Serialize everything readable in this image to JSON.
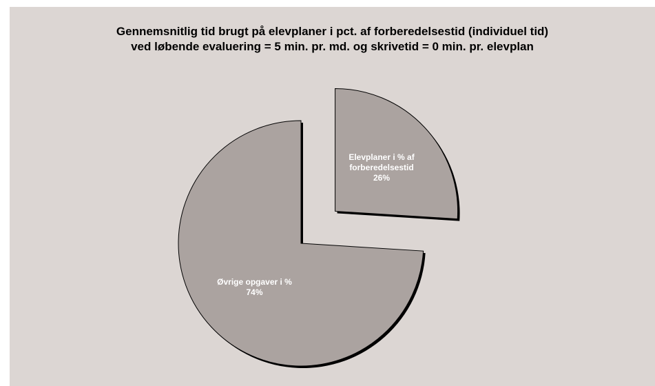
{
  "chart_data": {
    "type": "pie",
    "title_lines": [
      "Gennemsnitlig tid brugt på elevplaner i pct. af forberedelsestid (individuel tid)",
      "ved løbende evaluering = 5 min. pr. md. og skrivetid = 0 min. pr. elevplan"
    ],
    "slices": [
      {
        "name": "Elevplaner i % af forberedelsestid",
        "value": 26,
        "label_lines": [
          "Elevplaner i % af",
          "forberedelsestid",
          "26%"
        ],
        "exploded": true
      },
      {
        "name": "Øvrige opgaver i %",
        "value": 74,
        "label_lines": [
          "Øvrige opgaver i %",
          "74%"
        ],
        "exploded": false
      }
    ],
    "legend": false
  },
  "colors": {
    "background": "#dcd6d3",
    "slice_fill": "#aba3a0",
    "slice_stroke": "#000000",
    "shadow": "#000000",
    "label": "#ffffff"
  }
}
